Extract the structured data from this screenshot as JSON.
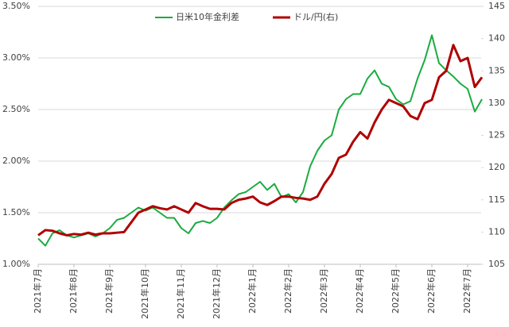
{
  "chart_data": {
    "type": "line",
    "categories": [
      "2021年7月",
      null,
      null,
      null,
      null,
      "2021年8月",
      null,
      null,
      null,
      null,
      "2021年9月",
      null,
      null,
      null,
      null,
      "2021年10月",
      null,
      null,
      null,
      null,
      "2021年11月",
      null,
      null,
      null,
      null,
      "2021年12月",
      null,
      null,
      null,
      null,
      "2022年1月",
      null,
      null,
      null,
      null,
      "2022年2月",
      null,
      null,
      null,
      null,
      "2022年3月",
      null,
      null,
      null,
      null,
      "2022年4月",
      null,
      null,
      null,
      null,
      "2022年5月",
      null,
      null,
      null,
      null,
      "2022年6月",
      null,
      null,
      null,
      null,
      "2022年7月",
      null,
      null
    ],
    "series": [
      {
        "name": "日米10年金利差",
        "color": "#1aab40",
        "values": [
          1.25,
          1.18,
          1.3,
          1.33,
          1.28,
          1.26,
          1.28,
          1.3,
          1.27,
          1.3,
          1.35,
          1.43,
          1.45,
          1.5,
          1.55,
          1.52,
          1.55,
          1.5,
          1.45,
          1.45,
          1.35,
          1.3,
          1.4,
          1.42,
          1.4,
          1.45,
          1.55,
          1.62,
          1.68,
          1.7,
          1.75,
          1.8,
          1.72,
          1.78,
          1.65,
          1.68,
          1.6,
          1.7,
          1.95,
          2.1,
          2.2,
          2.25,
          2.5,
          2.6,
          2.65,
          2.65,
          2.8,
          2.88,
          2.75,
          2.72,
          2.6,
          2.55,
          2.58,
          2.8,
          2.98,
          3.22,
          2.95,
          2.88,
          2.82,
          2.75,
          2.7,
          2.48,
          2.6
        ]
      },
      {
        "name": "ドル/円(右)",
        "color": "#b00000",
        "axis": "y2",
        "values": [
          109.5,
          110.3,
          110.2,
          109.8,
          109.5,
          109.7,
          109.6,
          109.9,
          109.6,
          109.8,
          109.8,
          109.9,
          110.0,
          111.5,
          113.0,
          113.5,
          114.0,
          113.7,
          113.5,
          114.0,
          113.5,
          113.0,
          114.5,
          114.0,
          113.6,
          113.6,
          113.5,
          114.5,
          115.0,
          115.2,
          115.5,
          114.6,
          114.2,
          114.8,
          115.5,
          115.5,
          115.3,
          115.2,
          115.0,
          115.5,
          117.5,
          119.0,
          121.5,
          122.0,
          124.0,
          125.5,
          124.5,
          127.0,
          129.0,
          130.5,
          130.0,
          129.5,
          128.0,
          127.5,
          130.0,
          130.5,
          134.0,
          135.0,
          139.0,
          136.5,
          137.0,
          132.5,
          134.0
        ]
      }
    ],
    "ylim": [
      1.0,
      3.5
    ],
    "yticks": [
      {
        "value": 1.0,
        "label": "1.00%"
      },
      {
        "value": 1.5,
        "label": "1.50%"
      },
      {
        "value": 2.0,
        "label": "2.00%"
      },
      {
        "value": 2.5,
        "label": "2.50%"
      },
      {
        "value": 3.0,
        "label": "3.00%"
      },
      {
        "value": 3.5,
        "label": "3.50%"
      }
    ],
    "y2lim": [
      105,
      145
    ],
    "y2ticks": [
      105,
      110,
      115,
      120,
      125,
      130,
      135,
      140,
      145
    ],
    "grid": true,
    "legend": "top"
  }
}
